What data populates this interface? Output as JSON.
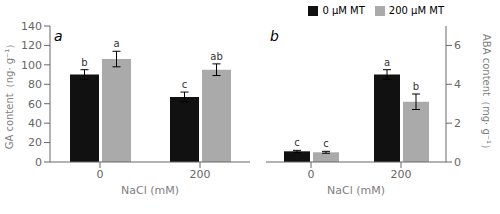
{
  "chart_data": [
    {
      "type": "bar",
      "title": "a",
      "categories": [
        "0",
        "200"
      ],
      "xlabel": "NaCl (mM)",
      "ylabel": "GA content（ng· g⁻¹）",
      "ylim": [
        0,
        140
      ],
      "yticks": [
        0,
        20,
        40,
        60,
        80,
        100,
        120,
        140
      ],
      "series": [
        {
          "color": "#111111",
          "values": [
            90,
            67
          ],
          "errors": [
            5,
            5
          ],
          "annotations": [
            "b",
            "c"
          ]
        },
        {
          "color": "#aaaaaa",
          "values": [
            106,
            95
          ],
          "errors": [
            8,
            6
          ],
          "annotations": [
            "a",
            "ab"
          ]
        }
      ]
    },
    {
      "type": "bar",
      "title": "b",
      "categories": [
        "0",
        "200"
      ],
      "xlabel": "NaCl (mM)",
      "y2label": "ABA content（mg· g⁻¹）",
      "y2lim": [
        0,
        7
      ],
      "y2ticks": [
        0,
        2,
        4,
        6
      ],
      "legend": "upper right",
      "series": [
        {
          "name": "0 μM MT",
          "color": "#111111",
          "axis": "y2",
          "values": [
            0.55,
            4.5
          ],
          "errors": [
            0.05,
            0.25
          ],
          "annotations": [
            "c",
            "a"
          ]
        },
        {
          "name": "200 μM MT",
          "color": "#aaaaaa",
          "axis": "y2",
          "values": [
            0.5,
            3.1
          ],
          "errors": [
            0.05,
            0.4
          ],
          "annotations": [
            "c",
            "b"
          ]
        }
      ]
    }
  ]
}
